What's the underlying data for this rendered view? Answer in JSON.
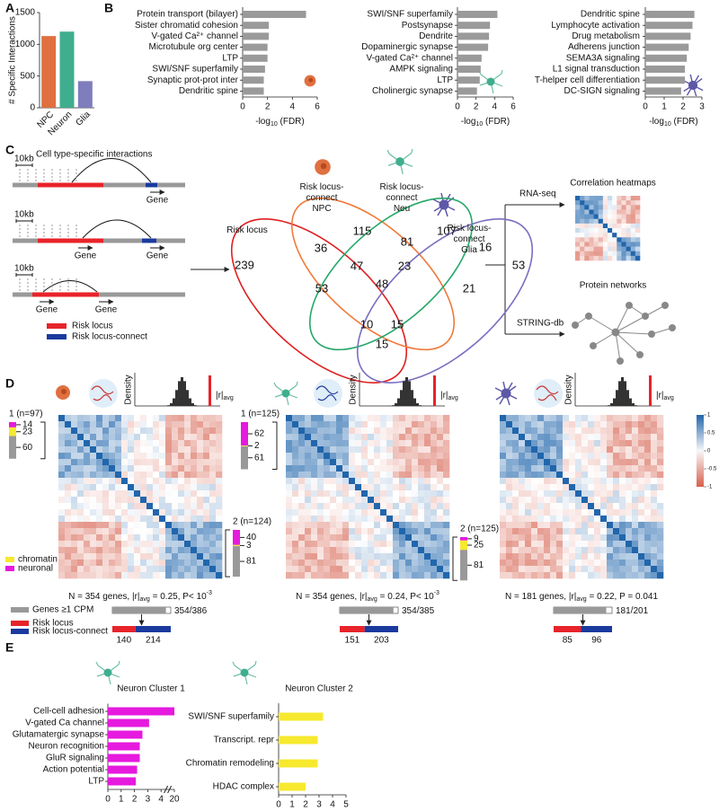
{
  "panels": [
    "A",
    "B",
    "C",
    "D",
    "E"
  ],
  "chart_data": [
    {
      "type": "bar",
      "ylabel": "# Specific Interactions",
      "categories": [
        "NPC",
        "Neuron",
        "Glia"
      ],
      "values": [
        1130,
        1200,
        420
      ],
      "colors": [
        "#e0703f",
        "#3fae8e",
        "#7f7dbd"
      ],
      "ylim": [
        0,
        1500
      ],
      "yticks": [
        0,
        500,
        1000,
        1500
      ]
    },
    {
      "type": "hbar",
      "categories": [
        "Protein transport (bilayer)",
        "Sister chromatid cohesion",
        "V-gated Ca²⁺ channel",
        "Microtubule org center",
        "LTP",
        "SWI/SNF superfamily",
        "Synaptic prot-prot inter",
        "Dendritic spine"
      ],
      "values": [
        5.1,
        2.1,
        2.1,
        2.0,
        2.0,
        1.8,
        1.7,
        1.7
      ],
      "color": "#9a9a9a",
      "xlabel": [
        "-log",
        "10",
        " (FDR)"
      ],
      "xlim": [
        0,
        6
      ],
      "xticks": [
        0,
        2,
        4,
        6
      ]
    },
    {
      "type": "hbar",
      "categories": [
        "SWI/SNF superfamily",
        "Postsynapse",
        "Dendrite",
        "Dopaminergic synapse",
        "V-gated Ca²⁺ channel",
        "AMPK signaling",
        "LTP",
        "Cholinergic synapse"
      ],
      "values": [
        4.3,
        3.5,
        3.4,
        3.3,
        2.6,
        2.5,
        2.4,
        2.1
      ],
      "color": "#9a9a9a",
      "xlabel": [
        "-log",
        "10",
        " (FDR)"
      ],
      "xlim": [
        0,
        6
      ],
      "xticks": [
        0,
        2,
        4,
        6
      ]
    },
    {
      "type": "hbar",
      "categories": [
        "Dendritic spine",
        "Lymphocyte activation",
        "Drug metabolism",
        "Adherens junction",
        "SEMA3A signaling",
        "L1 signal transduction",
        "T-helper cell differentiation",
        "DC-SIGN signaling"
      ],
      "values": [
        2.6,
        2.5,
        2.4,
        2.3,
        2.2,
        2.1,
        2.1,
        1.9
      ],
      "color": "#9a9a9a",
      "xlabel": [
        "-log",
        "10",
        " (FDR)"
      ],
      "xlim": [
        0,
        3
      ],
      "xticks": [
        0,
        1,
        2,
        3
      ]
    },
    {
      "type": "hbar",
      "title": "Neuron Cluster 1",
      "categories": [
        "Cell-cell adhesion",
        "V-gated Ca channel",
        "Glutamatergic synapse",
        "Neuron recognition",
        "GluR  signaling",
        "Action potential",
        "LTP"
      ],
      "values": [
        20,
        3.1,
        2.6,
        2.4,
        2.4,
        2.2,
        2.1
      ],
      "color": "#e619de",
      "xlim": [
        0,
        20
      ],
      "xticks": [
        0,
        1,
        2,
        3,
        4,
        20
      ],
      "axis_break": true
    },
    {
      "type": "hbar",
      "title": "Neuron Cluster 2",
      "categories": [
        "SWI/SNF superfamily",
        "Transcript. repr",
        "Chromatin remodeling",
        "HDAC complex"
      ],
      "values": [
        3.3,
        2.9,
        2.9,
        2.0
      ],
      "color": "#f7e92e",
      "xlim": [
        0,
        5
      ],
      "xticks": [
        0,
        1,
        2,
        3,
        4,
        5
      ]
    }
  ],
  "schematic": {
    "title": "Cell type-specific interactions",
    "scale": [
      "10kb",
      "10kb",
      "10kb"
    ],
    "genes": [
      [
        "Gene"
      ],
      [
        "Gene",
        "Gene"
      ],
      [
        "Gene",
        "Gene"
      ]
    ],
    "legend": [
      {
        "label": "Risk locus",
        "color": "#e8232a"
      },
      {
        "label": "Risk locus-connect",
        "color": "#1b3a9e"
      }
    ]
  },
  "venn": {
    "sets": [
      {
        "label": [
          "Risk locus"
        ],
        "color": "#e02020"
      },
      {
        "label": [
          "Risk locus-",
          "connect",
          "NPC"
        ],
        "color": "#f07a3a"
      },
      {
        "label": [
          "Risk locus-",
          "connect",
          "Neu"
        ],
        "color": "#27a86a"
      },
      {
        "label": [
          "Risk locus-",
          "connect",
          "Glia"
        ],
        "color": "#7a6fc0"
      }
    ],
    "regions": [
      239,
      36,
      115,
      81,
      107,
      16,
      53,
      47,
      23,
      53,
      48,
      21,
      10,
      15,
      15
    ],
    "region_colors": [
      "#111",
      "#111",
      "#1b3a9e",
      "#111",
      "#1b3a9e",
      "#1b3a9e",
      "#1b3a9e",
      "#111",
      "#1b3a9e",
      "#111",
      "#111",
      "#1b3a9e",
      "#111",
      "#111",
      "#111"
    ]
  },
  "outputs": [
    {
      "method": "RNA-seq",
      "result": "Correlation heatmaps"
    },
    {
      "method": "STRING-db",
      "result": "Protein networks"
    }
  ],
  "heatmaps": [
    {
      "density": "Density",
      "r_avg": [
        "|r|",
        "avg"
      ],
      "clusters": [
        {
          "label": "1 (n=97)",
          "values": [
            14,
            23,
            60
          ]
        },
        {
          "label": "2 (n=124)",
          "values": [
            40,
            3,
            81
          ]
        }
      ],
      "caption": [
        "N = 354 genes, |r|",
        "avg",
        " = 0.25, P< 10",
        "-3"
      ],
      "genes": [
        354,
        386
      ],
      "split": [
        140,
        214
      ]
    },
    {
      "density": "Density",
      "r_avg": [
        "|r|",
        "avg"
      ],
      "clusters": [
        {
          "label": "1 (n=125)",
          "values": [
            62,
            2,
            61
          ]
        },
        {
          "label": "2 (n=125)",
          "values": [
            9,
            25,
            81
          ]
        }
      ],
      "caption": [
        "N = 354 genes, |r|",
        "avg",
        " = 0.24, P< 10",
        "-3"
      ],
      "genes": [
        354,
        385
      ],
      "split": [
        151,
        203
      ]
    },
    {
      "density": "Density",
      "r_avg": [
        "|r|",
        "avg"
      ],
      "clusters": [],
      "caption": [
        "N = 181 genes, |r|",
        "avg",
        " = 0.22, P = 0.041"
      ],
      "genes": [
        181,
        201
      ],
      "split": [
        85,
        96
      ]
    }
  ],
  "cluster_legend": [
    {
      "label": "chromatin",
      "color": "#f7e92e"
    },
    {
      "label": "neuronal",
      "color": "#e619de"
    }
  ],
  "gene_legend": [
    "Genes ≥1 CPM",
    "Risk locus",
    "Risk locus-connect"
  ],
  "colorbar": {
    "ticks": [
      1,
      0.5,
      0,
      -0.5,
      -1
    ]
  }
}
